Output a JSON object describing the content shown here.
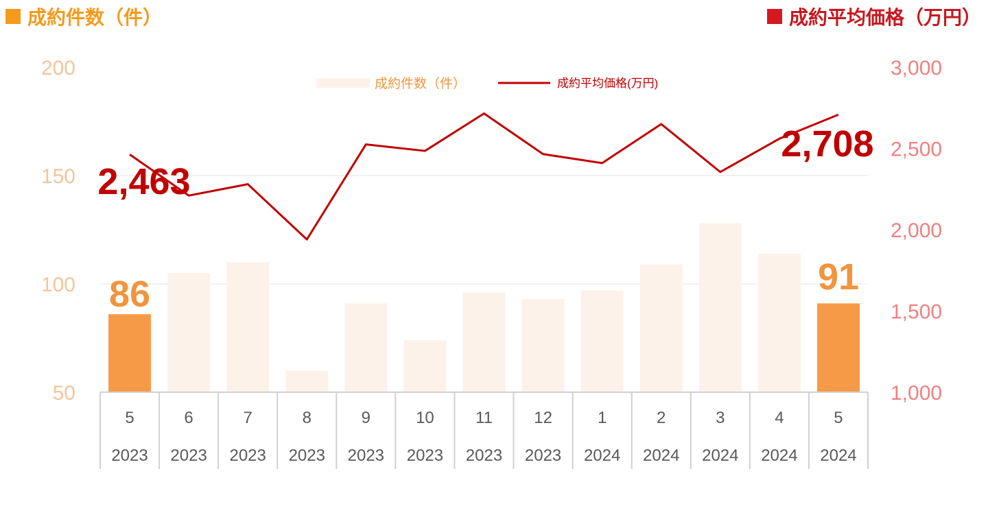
{
  "header": {
    "left_title": "成約件数（件）",
    "right_title": "成約平均価格（万円）"
  },
  "legend": {
    "bar_label": "成約件数（件）",
    "line_label": "成約平均価格(万円)"
  },
  "colors": {
    "bar_highlight": "#f79a48",
    "bar_muted": "#fdf2ea",
    "line": "#c00000",
    "left_axis": "#f5c49a",
    "right_axis": "#f08080",
    "left_title": "#f59a1c",
    "right_title": "#c8171e",
    "callout_count": "#f0953e",
    "callout_price": "#c00000"
  },
  "chart_data": {
    "type": "bar+line",
    "categories": [
      {
        "month": "5",
        "year": "2023"
      },
      {
        "month": "6",
        "year": "2023"
      },
      {
        "month": "7",
        "year": "2023"
      },
      {
        "month": "8",
        "year": "2023"
      },
      {
        "month": "9",
        "year": "2023"
      },
      {
        "month": "10",
        "year": "2023"
      },
      {
        "month": "11",
        "year": "2023"
      },
      {
        "month": "12",
        "year": "2023"
      },
      {
        "month": "1",
        "year": "2024"
      },
      {
        "month": "2",
        "year": "2024"
      },
      {
        "month": "3",
        "year": "2024"
      },
      {
        "month": "4",
        "year": "2024"
      },
      {
        "month": "5",
        "year": "2024"
      }
    ],
    "series": [
      {
        "name": "成約件数（件）",
        "axis": "left",
        "kind": "bar",
        "values": [
          86,
          105,
          110,
          60,
          91,
          74,
          96,
          93,
          97,
          109,
          128,
          114,
          91
        ],
        "highlight_indices": [
          0,
          12
        ]
      },
      {
        "name": "成約平均価格(万円)",
        "axis": "right",
        "kind": "line",
        "values": [
          2463,
          2210,
          2280,
          1940,
          2525,
          2485,
          2715,
          2465,
          2410,
          2650,
          2355,
          2560,
          2708
        ]
      }
    ],
    "left_axis": {
      "min": 50,
      "max": 200,
      "ticks": [
        "50",
        "100",
        "150",
        "200"
      ]
    },
    "right_axis": {
      "min": 1000,
      "max": 3000,
      "ticks": [
        "1,000",
        "1,500",
        "2,000",
        "2,500",
        "3,000"
      ]
    },
    "callouts": {
      "count_first": "86",
      "count_last": "91",
      "price_first": "2,463",
      "price_last": "2,708"
    },
    "gridlines": true,
    "legend_position": "top-center"
  }
}
